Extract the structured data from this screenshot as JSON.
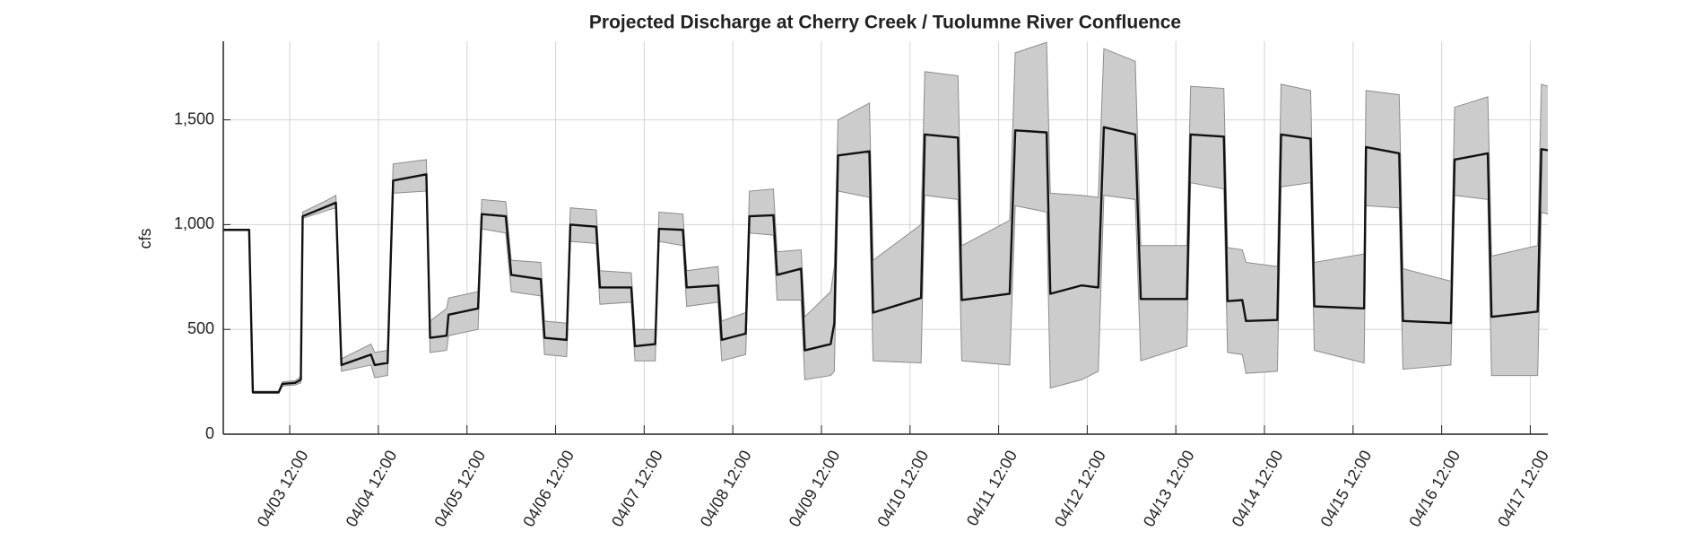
{
  "chart_data": {
    "type": "line",
    "title": "Projected Discharge at Cherry Creek / Tuolumne River Confluence",
    "ylabel": "cfs",
    "x": [
      "04/02 18:00",
      "04/03 01:00",
      "04/03 02:00",
      "04/03 09:00",
      "04/03 10:00",
      "04/03 13:30",
      "04/03 15:00",
      "04/03 15:30",
      "04/03 22:30",
      "04/04 00:30",
      "04/04 02:00",
      "04/04 10:00",
      "04/04 11:00",
      "04/04 14:30",
      "04/04 16:00",
      "04/05 01:00",
      "04/05 02:00",
      "04/05 06:30",
      "04/05 07:00",
      "04/05 15:00",
      "04/05 16:00",
      "04/05 22:30",
      "04/06 00:00",
      "04/06 08:00",
      "04/06 09:00",
      "04/06 15:00",
      "04/06 16:00",
      "04/06 23:00",
      "04/07 00:00",
      "04/07 08:30",
      "04/07 09:30",
      "04/07 15:00",
      "04/07 16:00",
      "04/07 22:30",
      "04/07 23:30",
      "04/08 08:00",
      "04/08 09:00",
      "04/08 15:30",
      "04/08 16:30",
      "04/08 23:00",
      "04/09 00:00",
      "04/09 06:30",
      "04/09 07:30",
      "04/09 14:30",
      "04/09 15:30",
      "04/09 16:30",
      "04/10 01:00",
      "04/10 02:00",
      "04/10 15:00",
      "04/10 16:00",
      "04/11 01:00",
      "04/11 02:00",
      "04/11 15:00",
      "04/11 16:30",
      "04/12 01:00",
      "04/12 02:00",
      "04/12 10:30",
      "04/12 15:00",
      "04/12 16:30",
      "04/13 01:00",
      "04/13 02:30",
      "04/13 15:00",
      "04/13 16:00",
      "04/14 01:00",
      "04/14 02:00",
      "04/14 06:00",
      "04/14 07:00",
      "04/14 15:30",
      "04/14 16:30",
      "04/15 00:30",
      "04/15 01:30",
      "04/15 15:00",
      "04/15 15:30",
      "04/16 00:30",
      "04/16 01:30",
      "04/16 14:30",
      "04/16 15:30",
      "04/17 00:30",
      "04/17 01:30",
      "04/17 14:00",
      "04/17 15:00",
      "04/17 16:45"
    ],
    "values": [
      975,
      975,
      200,
      200,
      240,
      245,
      260,
      1040,
      1090,
      1105,
      330,
      380,
      330,
      340,
      1210,
      1240,
      460,
      470,
      570,
      600,
      1050,
      1040,
      760,
      740,
      460,
      450,
      1000,
      990,
      700,
      700,
      420,
      430,
      980,
      975,
      700,
      710,
      450,
      480,
      1040,
      1045,
      760,
      790,
      400,
      430,
      530,
      1330,
      1350,
      580,
      650,
      1430,
      1415,
      640,
      670,
      1450,
      1440,
      670,
      710,
      700,
      1465,
      1430,
      645,
      645,
      1430,
      1420,
      635,
      640,
      540,
      545,
      1430,
      1410,
      610,
      600,
      1370,
      1340,
      540,
      530,
      1310,
      1340,
      560,
      585,
      1360,
      1355
    ],
    "lower": [
      975,
      975,
      195,
      195,
      230,
      235,
      245,
      1030,
      1070,
      1080,
      300,
      330,
      270,
      280,
      1150,
      1160,
      390,
      400,
      470,
      500,
      980,
      960,
      680,
      660,
      380,
      370,
      920,
      910,
      620,
      630,
      350,
      350,
      920,
      900,
      610,
      630,
      350,
      380,
      960,
      950,
      640,
      640,
      260,
      280,
      300,
      1160,
      1130,
      350,
      340,
      1140,
      1120,
      350,
      330,
      1090,
      1060,
      220,
      260,
      300,
      1140,
      1120,
      350,
      420,
      1200,
      1170,
      390,
      380,
      290,
      300,
      1180,
      1200,
      400,
      340,
      1090,
      1080,
      310,
      330,
      1140,
      1120,
      280,
      280,
      1060,
      1050
    ],
    "upper": [
      975,
      975,
      205,
      205,
      250,
      255,
      275,
      1060,
      1120,
      1140,
      360,
      430,
      390,
      400,
      1290,
      1310,
      540,
      600,
      650,
      680,
      1120,
      1110,
      830,
      820,
      540,
      530,
      1080,
      1070,
      780,
      770,
      500,
      500,
      1060,
      1050,
      780,
      800,
      540,
      580,
      1160,
      1170,
      870,
      880,
      560,
      680,
      800,
      1500,
      1580,
      830,
      1000,
      1730,
      1710,
      900,
      1020,
      1820,
      1870,
      1150,
      1140,
      1130,
      1840,
      1780,
      900,
      900,
      1660,
      1650,
      890,
      880,
      820,
      800,
      1670,
      1640,
      820,
      860,
      1640,
      1620,
      790,
      730,
      1560,
      1610,
      850,
      900,
      1670,
      1660
    ],
    "color": "#111111",
    "band_color": "#cccccc",
    "band_edge": "#8c8c8c",
    "xlim": [
      "04/02 18:00",
      "04/17 16:45"
    ],
    "xticks": [
      "04/03 12:00",
      "04/04 12:00",
      "04/05 12:00",
      "04/06 12:00",
      "04/07 12:00",
      "04/08 12:00",
      "04/09 12:00",
      "04/10 12:00",
      "04/11 12:00",
      "04/12 12:00",
      "04/13 12:00",
      "04/14 12:00",
      "04/15 12:00",
      "04/16 12:00",
      "04/17 12:00"
    ],
    "ylim": [
      0,
      1875
    ],
    "yticks": [
      0,
      500,
      {
        "value": 1000,
        "label": "1,000"
      },
      {
        "value": 1500,
        "label": "1,500"
      }
    ],
    "grid": true
  }
}
